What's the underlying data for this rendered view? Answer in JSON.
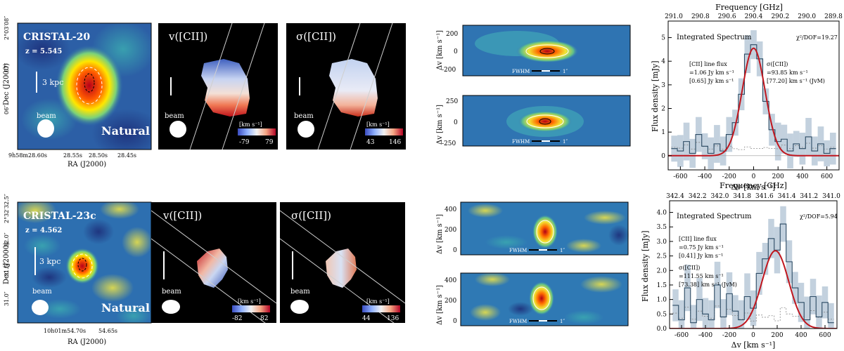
{
  "colors": {
    "fit_line": "#c0161e",
    "histogram": "#2b4a63",
    "uncertainty_band": "#b4c6d6",
    "component_dotted": "#888888",
    "contour": "#ffffff",
    "panel_bg": "#000000"
  },
  "rows": [
    {
      "id": "cristal-20",
      "name": "CRISTAL-20",
      "redshift": "z = 5.545",
      "weighting": "Natural",
      "scale_bar": "3 kpc",
      "beam_label": "beam",
      "dec_label": "Dec (J2000)",
      "ra_label": "RA (J2000)",
      "dec_ticks": [
        "2°03′08″",
        "07″",
        "06″"
      ],
      "ra_ticks": [
        "9h58m28.60s",
        "28.55s",
        "28.50s",
        "28.45s"
      ],
      "vel_panel": {
        "title": "v([CII])",
        "unit": "[km s⁻¹]",
        "cbar_min": "-79",
        "cbar_max": "79"
      },
      "disp_panel": {
        "title": "σ([CII])",
        "unit": "[km s⁻¹]",
        "cbar_min": "43",
        "cbar_max": "146"
      },
      "pv_top": {
        "ylabel": "Δv [km s⁻¹]",
        "ticks": [
          "200",
          "0",
          "-200"
        ],
        "fwhm": "FWHM",
        "arcsec": "1″"
      },
      "pv_bot": {
        "ylabel": "Δv [km s⁻¹]",
        "ticks": [
          "250",
          "0",
          "-250"
        ],
        "fwhm": "FWHM",
        "arcsec": "1″"
      },
      "spectrum": {
        "freq_label": "Frequency [GHz]",
        "freq_ticks": [
          "291.0",
          "290.8",
          "290.6",
          "290.4",
          "290.2",
          "290.0",
          "289.8"
        ],
        "title": "Integrated Spectrum",
        "chi2": "χ²/DOF=19.27",
        "ylabel": "Flux density [mJy]",
        "xlabel": "Δv [km s⁻¹]",
        "x_ticks": [
          "-600",
          "-400",
          "-200",
          "0",
          "200",
          "400",
          "600"
        ],
        "y_ticks": [
          "0",
          "1",
          "2",
          "3",
          "4",
          "5"
        ],
        "flux_lines": [
          "[CII] line flux",
          "=1.06 Jy km s⁻¹",
          "[0.65] Jy km s⁻¹"
        ],
        "sigma_lines": [
          "σ([CII])",
          "=93.85 km s⁻¹",
          "[77.20] km s⁻¹ (JvM)"
        ]
      }
    },
    {
      "id": "cristal-23c",
      "name": "CRISTAL-23c",
      "redshift": "z = 4.562",
      "weighting": "Natural",
      "scale_bar": "3 kpc",
      "beam_label": "beam",
      "dec_label": "Dec (J2000)",
      "ra_label": "RA (J2000)",
      "dec_ticks": [
        "2°32′32.5″",
        "32.0″",
        "31.5″",
        "31.0″"
      ],
      "ra_ticks": [
        "10h01m54.70s",
        "54.65s"
      ],
      "vel_panel": {
        "title": "v([CII])",
        "unit": "[km s⁻¹]",
        "cbar_min": "-82",
        "cbar_max": "82"
      },
      "disp_panel": {
        "title": "σ([CII])",
        "unit": "[km s⁻¹]",
        "cbar_min": "44",
        "cbar_max": "136"
      },
      "pv_top": {
        "ylabel": "Δv [km s⁻¹]",
        "ticks": [
          "400",
          "200",
          "0"
        ],
        "fwhm": "FWHM",
        "arcsec": "1″"
      },
      "pv_bot": {
        "ylabel": "Δv [km s⁻¹]",
        "ticks": [
          "400",
          "200",
          "0"
        ],
        "fwhm": "FWHM",
        "arcsec": "1″"
      },
      "spectrum": {
        "freq_label": "Frequency [GHz]",
        "freq_ticks": [
          "342.4",
          "342.2",
          "342.0",
          "341.8",
          "341.6",
          "341.4",
          "341.2",
          "341.0"
        ],
        "title": "Integrated Spectrum",
        "chi2": "χ²/DOF=5.94",
        "ylabel": "Flux density [mJy]",
        "xlabel": "Δv [km s⁻¹]",
        "x_ticks": [
          "-600",
          "-400",
          "-200",
          "0",
          "200",
          "400",
          "600"
        ],
        "y_ticks": [
          "0.0",
          "0.5",
          "1.0",
          "1.5",
          "2.0",
          "2.5",
          "3.0",
          "3.5",
          "4.0"
        ],
        "flux_lines": [
          "[CII] line flux",
          "=0.75 Jy km s⁻¹",
          "[0.41] Jy km s⁻¹"
        ],
        "sigma_lines": [
          "σ([CII])",
          "=111.55 km s⁻¹",
          "[73.38] km s⁻¹ (JvM)"
        ]
      }
    }
  ],
  "chart_data": [
    {
      "type": "line",
      "title": "Integrated Spectrum",
      "source": "CRISTAL-20",
      "xlabel": "Δv [km s⁻¹]",
      "ylabel": "Flux density [mJy]",
      "xlim": [
        -700,
        700
      ],
      "ylim": [
        -0.6,
        5.7
      ],
      "series": [
        {
          "name": "Gaussian fit",
          "amplitude": 4.55,
          "center": 0,
          "sigma": 93.85
        },
        {
          "name": "Integrated spectrum (histogram)",
          "x": [
            -650,
            -600,
            -550,
            -500,
            -450,
            -400,
            -350,
            -300,
            -250,
            -200,
            -150,
            -100,
            -50,
            0,
            50,
            100,
            150,
            200,
            250,
            300,
            350,
            400,
            450,
            500,
            550,
            600,
            650
          ],
          "y": [
            0.3,
            0.2,
            0.6,
            0.1,
            0.9,
            0.4,
            0.1,
            0.5,
            0.2,
            0.9,
            1.4,
            2.6,
            4.3,
            4.7,
            4.1,
            2.3,
            1.1,
            0.6,
            0.7,
            0.2,
            0.5,
            0.3,
            0.8,
            0.2,
            0.5,
            0.1,
            0.3
          ]
        }
      ]
    },
    {
      "type": "line",
      "title": "Integrated Spectrum",
      "source": "CRISTAL-23c",
      "xlabel": "Δv [km s⁻¹]",
      "ylabel": "Flux density [mJy]",
      "xlim": [
        -700,
        700
      ],
      "ylim": [
        0,
        4.4
      ],
      "series": [
        {
          "name": "Gaussian fit",
          "amplitude": 2.68,
          "center": 185,
          "sigma": 111.55
        },
        {
          "name": "Integrated spectrum (histogram)",
          "x": [
            -650,
            -600,
            -550,
            -500,
            -450,
            -400,
            -350,
            -300,
            -250,
            -200,
            -150,
            -100,
            -50,
            0,
            50,
            100,
            150,
            200,
            250,
            300,
            350,
            400,
            450,
            500,
            550,
            600,
            650
          ],
          "y": [
            0.8,
            0.3,
            1.4,
            0.2,
            1.0,
            0.5,
            0.3,
            1.5,
            0.4,
            1.2,
            0.6,
            0.3,
            1.1,
            0.7,
            1.9,
            2.4,
            3.1,
            2.7,
            3.6,
            2.3,
            1.4,
            0.9,
            0.3,
            1.1,
            0.4,
            0.9,
            0.2
          ]
        }
      ]
    }
  ]
}
